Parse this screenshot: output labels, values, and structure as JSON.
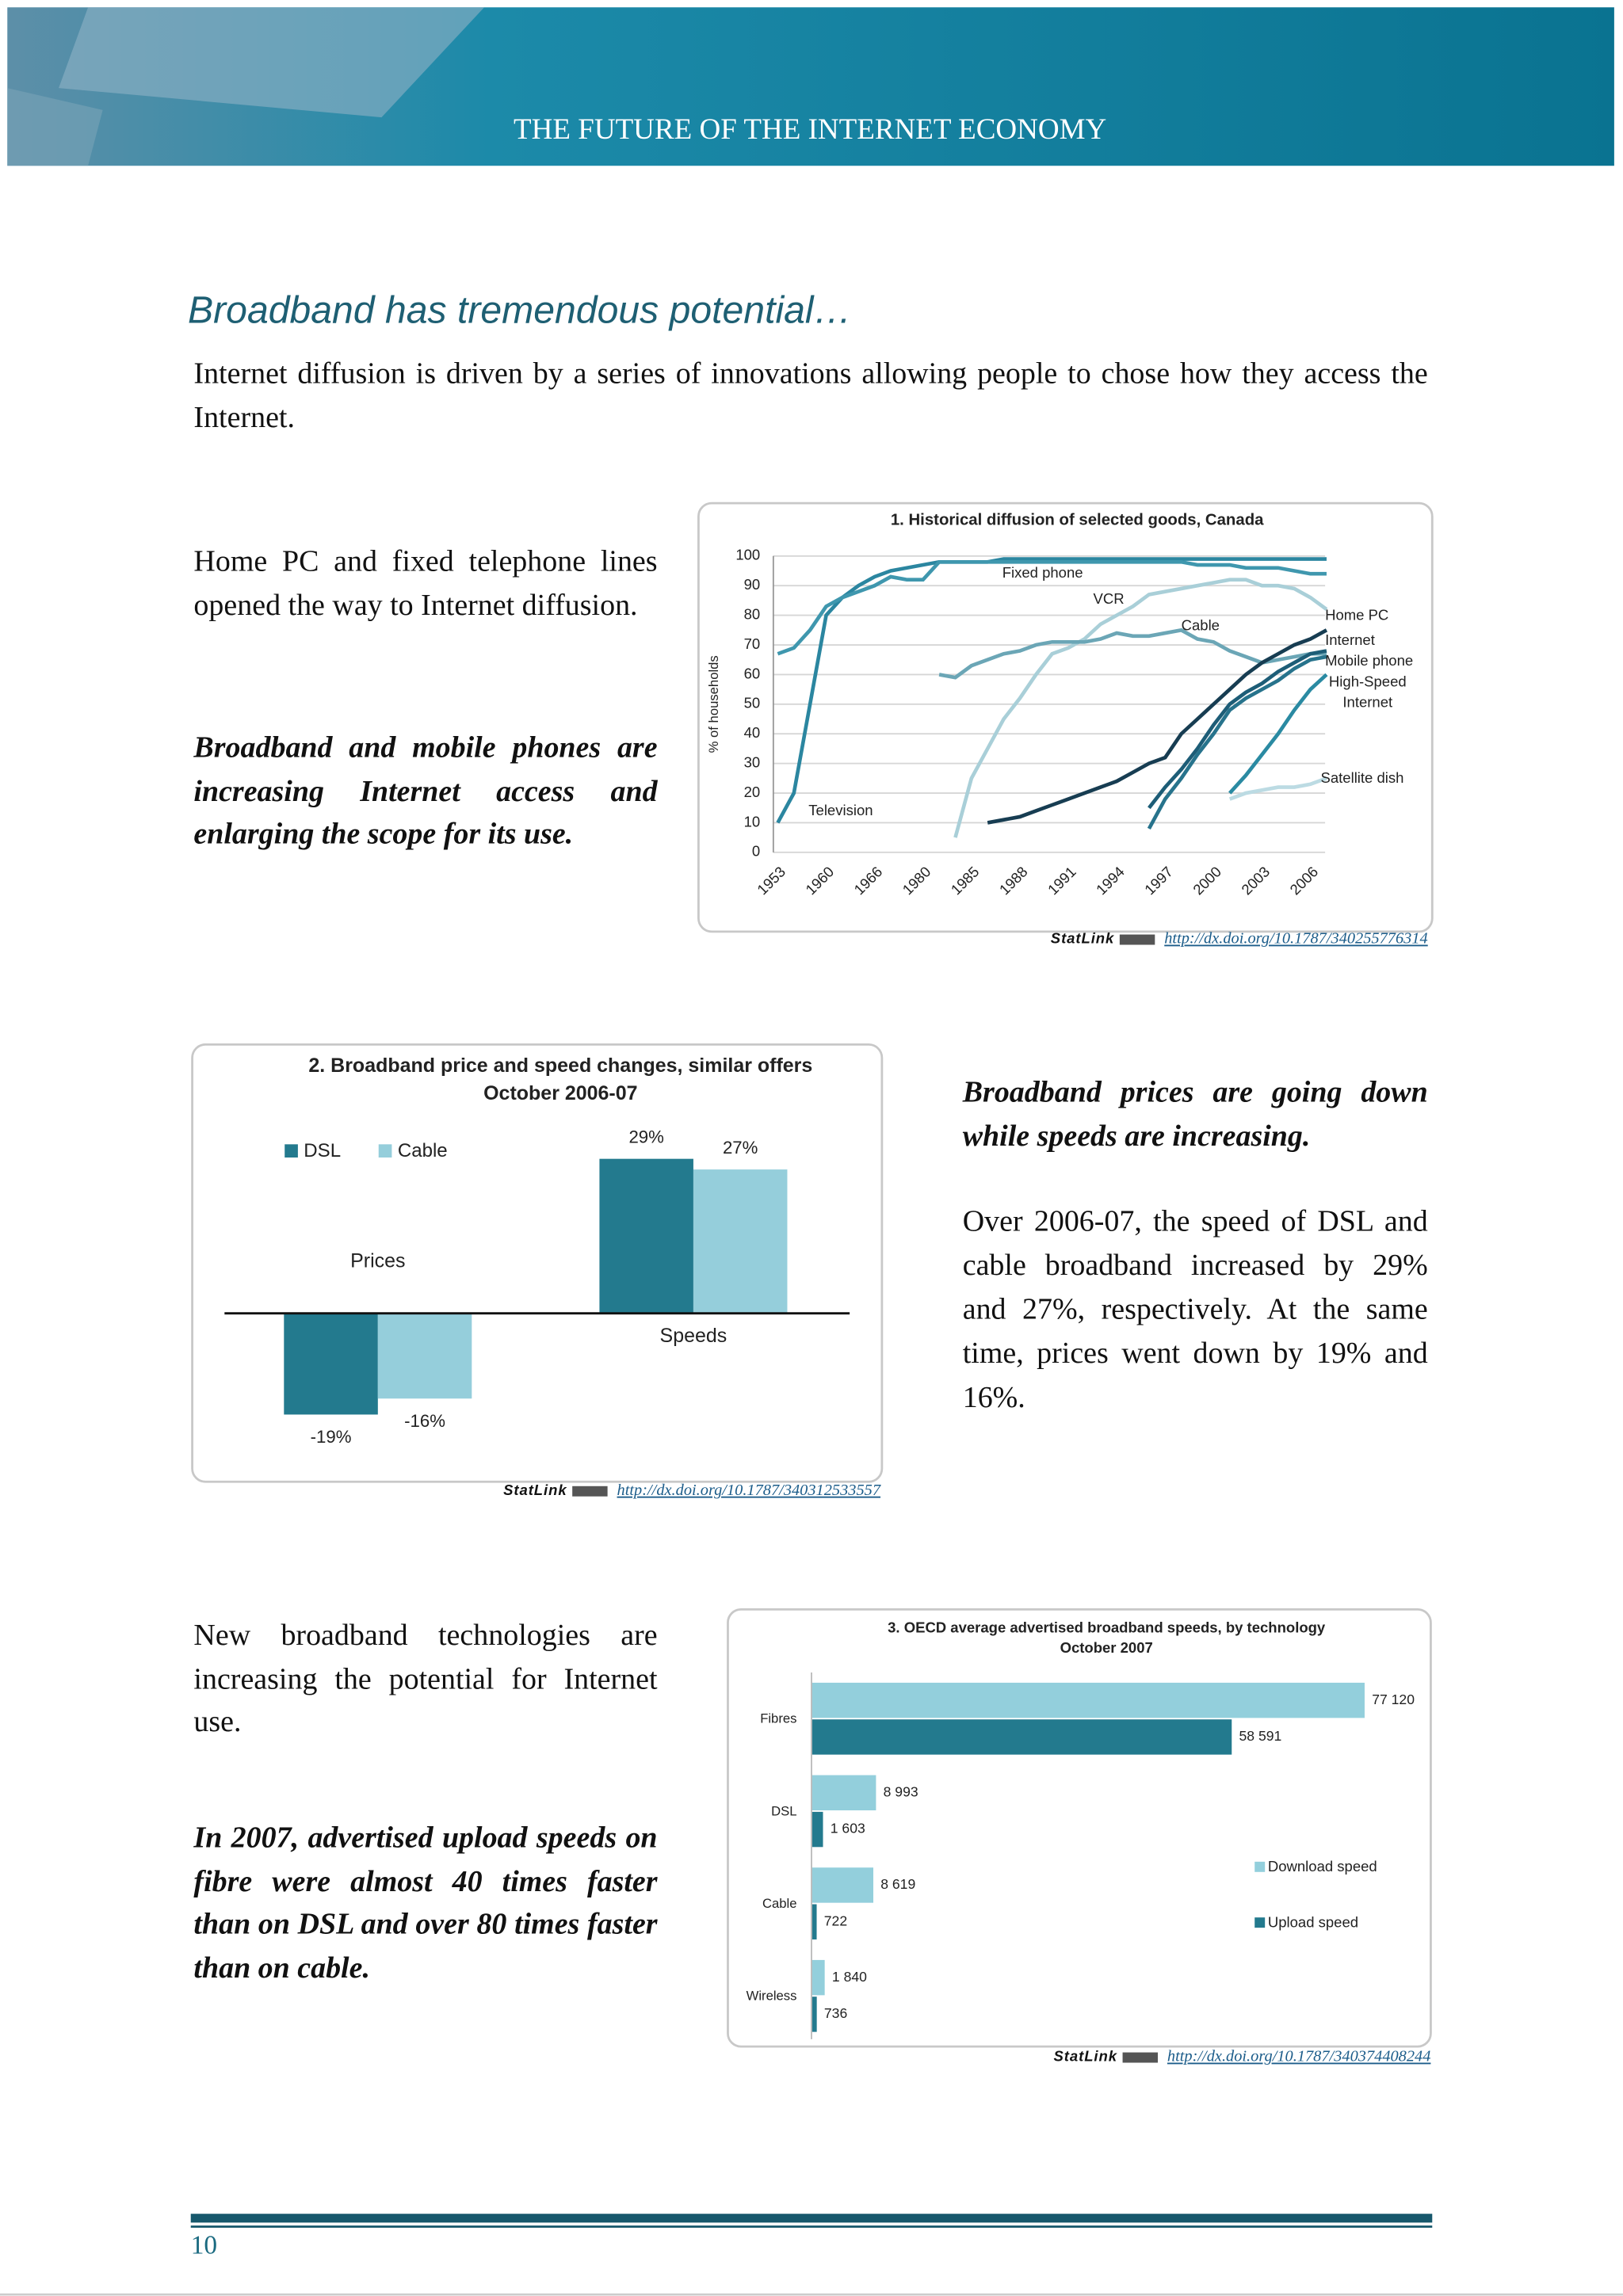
{
  "header": {
    "title": "THE FUTURE OF THE INTERNET ECONOMY"
  },
  "heading": "Broadband has tremendous potential…",
  "intro": "Internet diffusion is driven by a series of innovations allowing people to chose how they access the Internet.",
  "blocks": [
    {
      "text": "Home PC and fixed telephone lines opened the way to Internet diffusion.",
      "emphasis": "Broadband and mobile phones are increasing Internet access and enlarging the scope for its use."
    },
    {
      "emphasis": "Broadband prices are going down while speeds are increasing.",
      "text": "Over 2006-07, the speed of DSL and cable broadband increased by 29% and 27%, respectively. At the same time, prices went down by 19% and 16%."
    },
    {
      "text": "New broadband technologies are increasing the potential for Internet use.",
      "emphasis": "In 2007, advertised upload speeds on fibre were almost 40 times faster than on DSL and over 80 times faster than on cable."
    }
  ],
  "chart_data": [
    {
      "type": "line",
      "title": "1. Historical diffusion of selected goods, Canada",
      "y_label": "% of households",
      "categories": [
        "1953",
        null,
        null,
        "1960",
        null,
        null,
        "1966",
        null,
        null,
        "1980",
        null,
        null,
        "1985",
        null,
        null,
        "1988",
        null,
        null,
        "1991",
        null,
        null,
        "1994",
        null,
        null,
        "1997",
        null,
        null,
        "2000",
        null,
        null,
        "2003",
        null,
        null,
        "2006",
        null
      ],
      "ylim": [
        0,
        100
      ],
      "yticks": [
        0,
        10,
        20,
        30,
        40,
        50,
        60,
        70,
        80,
        90,
        100
      ],
      "grid": true,
      "series": [
        {
          "name": "Television",
          "color": "#2b86a0",
          "values": [
            10,
            20,
            50,
            80,
            86,
            90,
            93,
            95,
            96,
            97,
            98,
            98,
            98,
            98,
            99,
            99,
            99,
            99,
            99,
            99,
            99,
            99,
            99,
            99,
            99,
            99,
            99,
            99,
            99,
            99,
            99,
            99,
            99,
            99,
            99
          ]
        },
        {
          "name": "Fixed phone",
          "color": "#3f97ae",
          "values": [
            67,
            69,
            75,
            83,
            86,
            88,
            90,
            93,
            92,
            92,
            98,
            98,
            98,
            98,
            98,
            98,
            98,
            98,
            98,
            98,
            98,
            98,
            98,
            98,
            98,
            98,
            97,
            97,
            97,
            96,
            96,
            96,
            95,
            94,
            94
          ]
        },
        {
          "name": "VCR",
          "color": "#a9cfd8",
          "values": [
            null,
            null,
            null,
            null,
            null,
            null,
            null,
            null,
            null,
            null,
            null,
            5,
            25,
            35,
            45,
            52,
            60,
            67,
            69,
            72,
            77,
            80,
            83,
            87,
            88,
            89,
            90,
            91,
            92,
            92,
            90,
            90,
            89,
            86,
            82
          ]
        },
        {
          "name": "Cable",
          "color": "#6ba6b6",
          "values": [
            null,
            null,
            null,
            null,
            null,
            null,
            null,
            null,
            null,
            null,
            60,
            59,
            63,
            65,
            67,
            68,
            70,
            71,
            71,
            71,
            72,
            74,
            73,
            73,
            74,
            75,
            72,
            71,
            68,
            66,
            64,
            65,
            66,
            67,
            67
          ]
        },
        {
          "name": "Home PC",
          "color": "#173d52",
          "values": [
            null,
            null,
            null,
            null,
            null,
            null,
            null,
            null,
            null,
            null,
            null,
            null,
            null,
            10,
            11,
            12,
            14,
            16,
            18,
            20,
            22,
            24,
            27,
            30,
            32,
            40,
            45,
            50,
            55,
            60,
            64,
            67,
            70,
            72,
            75
          ]
        },
        {
          "name": "Internet",
          "color": "#1d5d77",
          "values": [
            null,
            null,
            null,
            null,
            null,
            null,
            null,
            null,
            null,
            null,
            null,
            null,
            null,
            null,
            null,
            null,
            null,
            null,
            null,
            null,
            null,
            null,
            null,
            15,
            22,
            28,
            35,
            43,
            50,
            54,
            57,
            61,
            64,
            67,
            68
          ]
        },
        {
          "name": "Mobile phone",
          "color": "#27738c",
          "values": [
            null,
            null,
            null,
            null,
            null,
            null,
            null,
            null,
            null,
            null,
            null,
            null,
            null,
            null,
            null,
            null,
            null,
            null,
            null,
            null,
            null,
            null,
            null,
            8,
            18,
            25,
            33,
            40,
            48,
            52,
            55,
            58,
            62,
            65,
            66
          ]
        },
        {
          "name": "High-Speed Internet",
          "color": "#2a8aa2",
          "values": [
            null,
            null,
            null,
            null,
            null,
            null,
            null,
            null,
            null,
            null,
            null,
            null,
            null,
            null,
            null,
            null,
            null,
            null,
            null,
            null,
            null,
            null,
            null,
            null,
            null,
            null,
            null,
            null,
            20,
            26,
            33,
            40,
            48,
            55,
            60
          ]
        },
        {
          "name": "Satellite dish",
          "color": "#bcdbe3",
          "values": [
            null,
            null,
            null,
            null,
            null,
            null,
            null,
            null,
            null,
            null,
            null,
            null,
            null,
            null,
            null,
            null,
            null,
            null,
            null,
            null,
            null,
            null,
            null,
            null,
            null,
            null,
            null,
            null,
            18,
            20,
            21,
            22,
            22,
            23,
            25
          ]
        }
      ]
    },
    {
      "type": "bar",
      "title": "2. Broadband price and speed changes, similar offers",
      "subtitle": "October 2006-07",
      "categories": [
        "Prices",
        "Speeds"
      ],
      "ylim": [
        -25,
        32
      ],
      "series": [
        {
          "name": "DSL",
          "color": "#237a8e",
          "values": [
            -19,
            29
          ],
          "value_labels": [
            "-19%",
            "29%"
          ]
        },
        {
          "name": "Cable",
          "color": "#95cedb",
          "values": [
            -16,
            27
          ],
          "value_labels": [
            "-16%",
            "27%"
          ]
        }
      ]
    },
    {
      "type": "hbar",
      "title": "3. OECD average advertised broadband speeds, by technology",
      "subtitle": "October 2007",
      "categories": [
        "Fibres",
        "DSL",
        "Cable",
        "Wireless"
      ],
      "xlim": [
        0,
        80000
      ],
      "series": [
        {
          "name": "Download speed",
          "color": "#93cfdc",
          "values": [
            77120,
            8993,
            8619,
            1840
          ],
          "value_labels": [
            "77 120",
            "8 993",
            "8 619",
            "1 840"
          ]
        },
        {
          "name": "Upload speed",
          "color": "#237a8e",
          "values": [
            58591,
            1603,
            722,
            736
          ],
          "value_labels": [
            "58 591",
            "1 603",
            "722",
            "736"
          ]
        }
      ]
    }
  ],
  "statlinks": [
    {
      "label": "StatLink",
      "url": "http://dx.doi.org/10.1787/340255776314"
    },
    {
      "label": "StatLink",
      "url": "http://dx.doi.org/10.1787/340312533557"
    },
    {
      "label": "StatLink",
      "url": "http://dx.doi.org/10.1787/340374408244"
    }
  ],
  "page_number": "10"
}
